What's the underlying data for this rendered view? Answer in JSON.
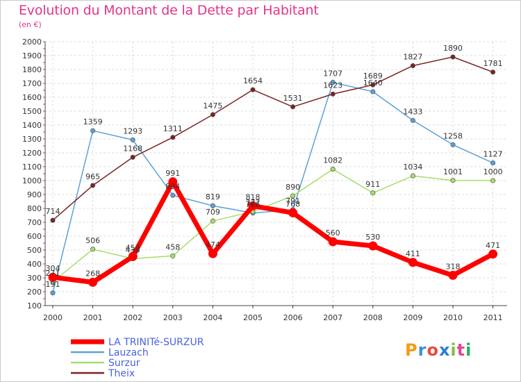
{
  "title": "Evolution du Montant de la Dette par Habitant",
  "subtitle": "(en €)",
  "logo": {
    "letters": [
      "P",
      "r",
      "o",
      "x",
      "i",
      "t",
      "i"
    ],
    "colors": [
      "#f39c12",
      "#3a8fd8",
      "#e74c3c",
      "#2e7bd6",
      "#7dc242",
      "#e84393",
      "#27ae60"
    ]
  },
  "chart_data": {
    "type": "line",
    "title": "Evolution du Montant de la Dette par Habitant",
    "xlabel": "",
    "ylabel": "(en €)",
    "categories": [
      "2000",
      "2001",
      "2002",
      "2003",
      "2004",
      "2005",
      "2006",
      "2007",
      "2008",
      "2009",
      "2010",
      "2011"
    ],
    "ylim": [
      100,
      2000
    ],
    "yticks": [
      100,
      200,
      300,
      400,
      500,
      600,
      700,
      800,
      900,
      1000,
      1100,
      1200,
      1300,
      1400,
      1500,
      1600,
      1700,
      1800,
      1900,
      2000
    ],
    "grid": true,
    "legend_position": "bottom-left",
    "series": [
      {
        "name": "Lauzach",
        "color": "#5ba1d8",
        "values": [
          191,
          1359,
          1293,
          894,
          819,
          766,
          791,
          1707,
          1640,
          1433,
          1258,
          1127
        ]
      },
      {
        "name": "Surzur",
        "color": "#a6dd68",
        "values": [
          271,
          506,
          438,
          458,
          709,
          777,
          890,
          1082,
          911,
          1034,
          1001,
          1000
        ]
      },
      {
        "name": "Theix",
        "color": "#7a2323",
        "values": [
          714,
          965,
          1168,
          1311,
          1475,
          1654,
          1531,
          1623,
          1689,
          1827,
          1890,
          1781
        ]
      },
      {
        "name": "LA TRINITé-SURZUR",
        "color": "#ff0000",
        "values": [
          304,
          268,
          453,
          991,
          474,
          818,
          768,
          560,
          530,
          411,
          318,
          471
        ]
      }
    ],
    "data_labels": [
      [
        "191",
        "1359",
        "1293",
        "894",
        "819",
        "766",
        "791",
        "1707",
        "1640",
        "1433",
        "1258",
        "1127"
      ],
      [
        "271",
        "506",
        "438",
        "458",
        "709",
        "777",
        "890",
        "1082",
        "911",
        "1034",
        "1001",
        "1000"
      ],
      [
        "714",
        "965",
        "1168",
        "1311",
        "1475",
        "1654",
        "1531",
        "1623",
        "1689",
        "1827",
        "1890",
        "1781"
      ],
      [
        "304",
        "268",
        "453",
        "991",
        "474",
        "818",
        "768",
        "560",
        "530",
        "411",
        "318",
        "471"
      ]
    ]
  }
}
